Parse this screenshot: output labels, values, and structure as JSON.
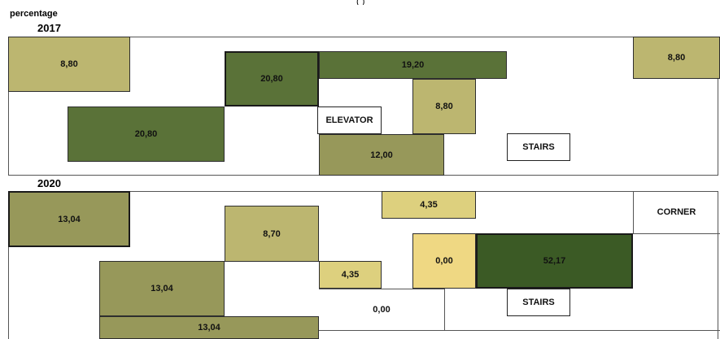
{
  "colors": {
    "light_olive": "#bcb670",
    "mid_olive": "#97985a",
    "dark_green": "#5a7238",
    "darker_green": "#3b5a25",
    "pale_yellow": "#ddd07e",
    "yellow": "#efd883"
  },
  "header": {
    "caption": "percentage",
    "top_fragment": "(  )"
  },
  "plan_2017": {
    "year": "2017",
    "cells": {
      "top_left": "8,80",
      "center_upper": "20,80",
      "top_band": "19,20",
      "top_right": "8,80",
      "left_lower": "20,80",
      "elevator": "ELEVATOR",
      "small_right": "8,80",
      "bottom_center": "12,00",
      "stairs": "STAIRS"
    }
  },
  "plan_2020": {
    "year": "2020",
    "cells": {
      "top_left": "13,04",
      "upper_center": "8,70",
      "top_band": "4,35",
      "corner": "CORNER",
      "left_lower": "13,04",
      "bottom_left": "13,04",
      "small_center": "4,35",
      "yellow_cell": "0,00",
      "big_green": "52,17",
      "stairs": "STAIRS",
      "open_bottom": "0,00"
    }
  }
}
